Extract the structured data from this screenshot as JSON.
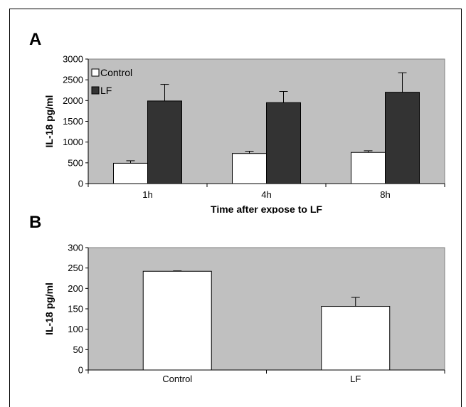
{
  "panel_a_letter": "A",
  "panel_b_letter": "B",
  "colors": {
    "plot_bg": "#c0c0c0",
    "control": "#ffffff",
    "lf": "#333333",
    "stroke": "#000000"
  },
  "chart_data": [
    {
      "type": "bar",
      "panel": "A",
      "categories": [
        "1h",
        "4h",
        "8h"
      ],
      "series": [
        {
          "name": "Control",
          "values": [
            490,
            725,
            750
          ],
          "errors": [
            60,
            55,
            40
          ]
        },
        {
          "name": "LF",
          "values": [
            1990,
            1950,
            2200
          ],
          "errors": [
            400,
            270,
            470
          ]
        }
      ],
      "xlabel": "Time after expose to LF",
      "ylabel": "IL-18 pg/ml",
      "ylim": [
        0,
        3000
      ],
      "yticks": [
        0,
        500,
        1000,
        1500,
        2000,
        2500,
        3000
      ],
      "legend": "top-left",
      "grid": false
    },
    {
      "type": "bar",
      "panel": "B",
      "categories": [
        "Control",
        "LF"
      ],
      "series": [
        {
          "values": [
            242,
            156
          ],
          "errors": [
            1,
            22
          ]
        }
      ],
      "xlabel": "",
      "ylabel": "IL-18 pg/ml",
      "ylim": [
        0,
        300
      ],
      "yticks": [
        0,
        50,
        100,
        150,
        200,
        250,
        300
      ],
      "grid": false
    }
  ]
}
